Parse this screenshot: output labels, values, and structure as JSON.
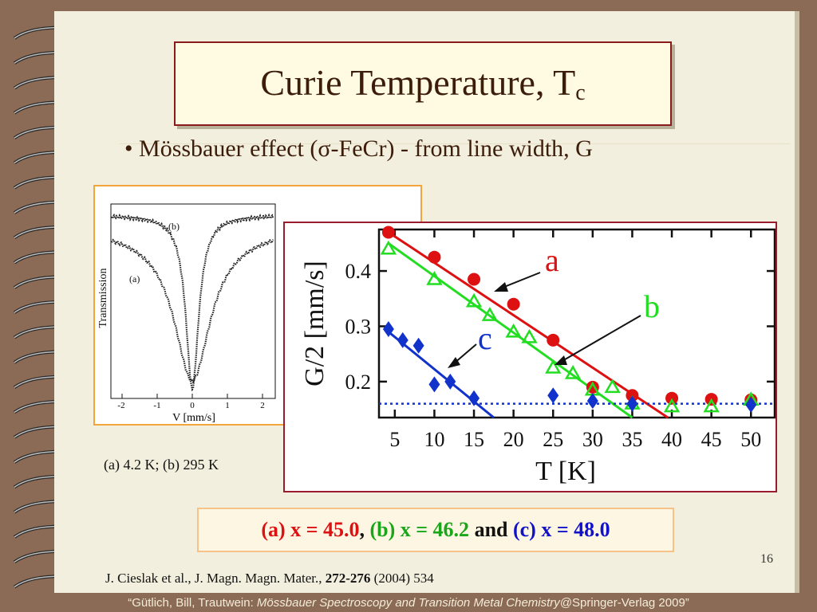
{
  "title": {
    "main": "Curie Temperature, T",
    "sub": "c"
  },
  "bullet": {
    "symbol": "•",
    "text": "Mössbauer effect (σ-FeCr) - from line width, G"
  },
  "spectrum": {
    "ylabel": "Transmission",
    "xlabel": "V [mm/s]",
    "x_ticks": [
      "-2",
      "-1",
      "0",
      "1",
      "2"
    ],
    "curve_labels": [
      "(b)",
      "(a)"
    ],
    "caption": "(a) 4.2 K; (b) 295 K"
  },
  "legend": {
    "a_label": "(a) x = 45.0",
    "sep1": ",",
    "b_label": "(b) x = 46.2",
    "sep2": "and",
    "c_label": "(c) x = 48.0"
  },
  "page_number": "16",
  "citation": {
    "authors": "J. Cieslak et al., J. Magn. Magn. Mater., ",
    "volume": "272-276",
    "rest": " (2004) 534"
  },
  "footer": {
    "pre": "“Gütlich, Bill, Trautwein: ",
    "book": "Mössbauer Spectroscopy and Transition Metal Chemistry",
    "post": "@Springer-Verlag 2009”"
  },
  "colors": {
    "a": "#dd1111",
    "b": "#22dd22",
    "c": "#1133cc",
    "title_border": "#8b1a1a",
    "spectrum_border": "#f3a43a"
  },
  "chart_data": {
    "type": "scatter",
    "xlabel": "T [K]",
    "ylabel": "G/2 [mm/s]",
    "xlim": [
      3,
      53
    ],
    "ylim": [
      0.135,
      0.475
    ],
    "x_ticks": [
      5,
      10,
      15,
      20,
      25,
      30,
      35,
      40,
      45,
      50
    ],
    "y_ticks": [
      0.2,
      0.3,
      0.4
    ],
    "baseline": 0.16,
    "series": [
      {
        "name": "a",
        "marker": "circle",
        "color": "#dd1111",
        "points": [
          [
            4.2,
            0.47
          ],
          [
            10,
            0.425
          ],
          [
            15,
            0.385
          ],
          [
            20,
            0.34
          ],
          [
            25,
            0.275
          ],
          [
            30,
            0.19
          ],
          [
            35,
            0.175
          ],
          [
            40,
            0.17
          ],
          [
            45,
            0.168
          ],
          [
            50,
            0.167
          ]
        ],
        "fit": [
          [
            4.2,
            0.47
          ],
          [
            39.5,
            0.135
          ]
        ]
      },
      {
        "name": "b",
        "marker": "triangle",
        "color": "#22dd22",
        "points": [
          [
            4.2,
            0.44
          ],
          [
            10,
            0.385
          ],
          [
            15,
            0.345
          ],
          [
            17,
            0.32
          ],
          [
            20,
            0.29
          ],
          [
            22,
            0.28
          ],
          [
            25,
            0.225
          ],
          [
            27.5,
            0.215
          ],
          [
            30,
            0.185
          ],
          [
            32.5,
            0.19
          ],
          [
            35,
            0.16
          ],
          [
            40,
            0.155
          ],
          [
            45,
            0.155
          ],
          [
            50,
            0.167
          ]
        ],
        "fit": [
          [
            4.2,
            0.45
          ],
          [
            35,
            0.135
          ]
        ]
      },
      {
        "name": "c",
        "marker": "diamond",
        "color": "#1133cc",
        "points": [
          [
            4.2,
            0.295
          ],
          [
            6,
            0.275
          ],
          [
            8,
            0.265
          ],
          [
            10,
            0.195
          ],
          [
            12,
            0.2
          ],
          [
            15,
            0.17
          ],
          [
            25,
            0.175
          ],
          [
            30,
            0.165
          ],
          [
            35,
            0.16
          ],
          [
            50,
            0.158
          ]
        ],
        "fit": [
          [
            4.2,
            0.29
          ],
          [
            17.5,
            0.135
          ]
        ]
      }
    ]
  }
}
